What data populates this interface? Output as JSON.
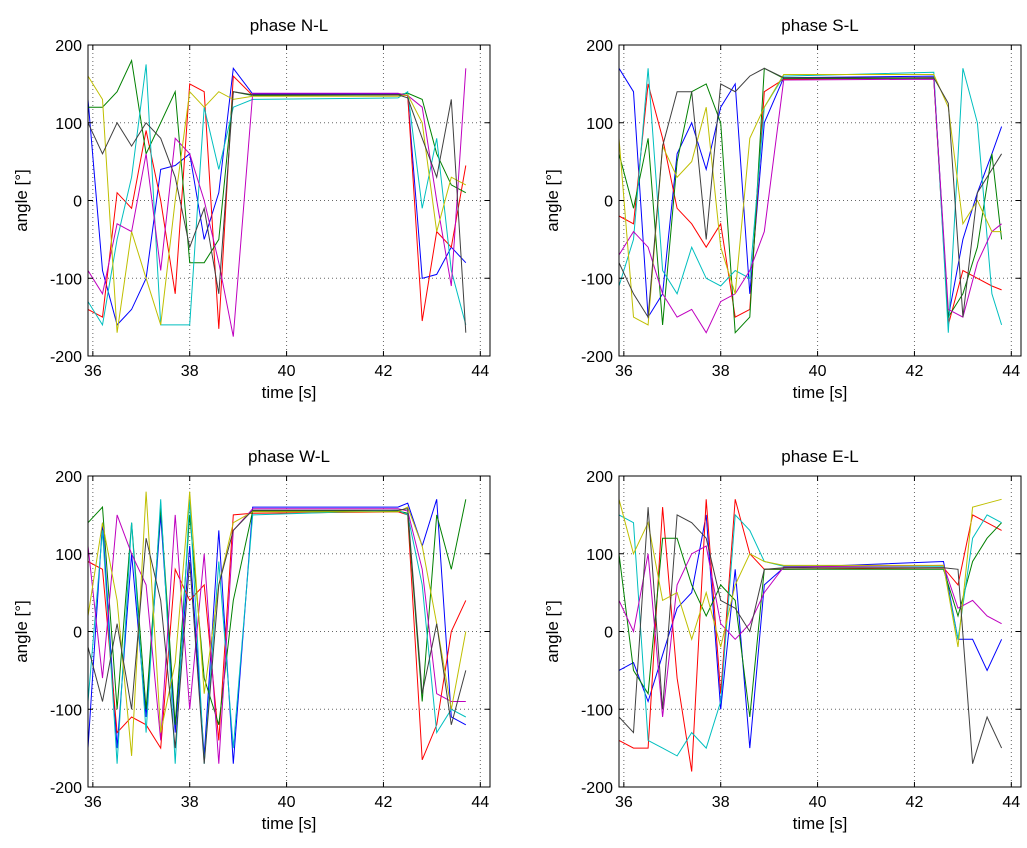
{
  "chart_data": [
    {
      "type": "line",
      "title": "phase N-L",
      "xlabel": "time [s]",
      "ylabel": "angle [°]",
      "xlim": [
        35.9,
        44.2
      ],
      "ylim": [
        -200,
        200
      ],
      "xticks": [
        36,
        38,
        40,
        42,
        44
      ],
      "yticks": [
        -200,
        -100,
        0,
        100,
        200
      ],
      "grid": true,
      "x": [
        35.9,
        36.2,
        36.5,
        36.8,
        37.1,
        37.4,
        37.7,
        38.0,
        38.3,
        38.6,
        38.9,
        39.3,
        42.3,
        42.5,
        42.8,
        43.1,
        43.4,
        43.7
      ],
      "series": [
        {
          "color": "#0000ff",
          "values": [
            130,
            -90,
            -160,
            -140,
            -100,
            40,
            45,
            60,
            -50,
            10,
            170,
            137,
            137,
            135,
            -100,
            -95,
            -60,
            -80
          ]
        },
        {
          "color": "#ff0000",
          "values": [
            -140,
            -150,
            10,
            -10,
            90,
            0,
            -120,
            150,
            140,
            -165,
            160,
            135,
            136,
            135,
            -155,
            -40,
            -60,
            45
          ]
        },
        {
          "color": "#008000",
          "values": [
            120,
            120,
            140,
            180,
            60,
            100,
            140,
            -80,
            -80,
            -50,
            140,
            135,
            136,
            138,
            130,
            60,
            20,
            10
          ]
        },
        {
          "color": "#00bfbf",
          "values": [
            -130,
            -160,
            -50,
            30,
            175,
            -160,
            -160,
            -160,
            120,
            40,
            120,
            130,
            132,
            140,
            -10,
            80,
            -90,
            -160
          ]
        },
        {
          "color": "#bf00bf",
          "values": [
            -90,
            -120,
            -30,
            -40,
            60,
            -90,
            80,
            60,
            0,
            -80,
            -175,
            138,
            138,
            135,
            120,
            0,
            -110,
            170
          ]
        },
        {
          "color": "#bfbf00",
          "values": [
            160,
            130,
            -170,
            -40,
            -100,
            -160,
            0,
            140,
            120,
            140,
            130,
            134,
            134,
            136,
            100,
            -40,
            30,
            20
          ]
        },
        {
          "color": "#404040",
          "values": [
            100,
            60,
            100,
            70,
            100,
            80,
            30,
            -60,
            -10,
            -120,
            140,
            136,
            136,
            132,
            80,
            30,
            130,
            -170
          ]
        }
      ]
    },
    {
      "type": "line",
      "title": "phase S-L",
      "xlabel": "time [s]",
      "ylabel": "angle [°]",
      "xlim": [
        35.9,
        44.2
      ],
      "ylim": [
        -200,
        200
      ],
      "xticks": [
        36,
        38,
        40,
        42,
        44
      ],
      "yticks": [
        -200,
        -100,
        0,
        100,
        200
      ],
      "grid": true,
      "x": [
        35.9,
        36.2,
        36.5,
        36.8,
        37.1,
        37.4,
        37.7,
        38.0,
        38.3,
        38.6,
        38.9,
        39.3,
        42.4,
        42.7,
        43.0,
        43.3,
        43.6,
        43.8
      ],
      "series": [
        {
          "color": "#0000ff",
          "values": [
            170,
            140,
            -150,
            -120,
            60,
            100,
            40,
            120,
            150,
            -120,
            100,
            158,
            160,
            -150,
            -50,
            10,
            60,
            95
          ]
        },
        {
          "color": "#ff0000",
          "values": [
            -20,
            -30,
            150,
            80,
            -10,
            -30,
            -60,
            -30,
            -150,
            -140,
            140,
            156,
            158,
            -160,
            -90,
            -100,
            -110,
            -115
          ]
        },
        {
          "color": "#008000",
          "values": [
            60,
            -10,
            80,
            -160,
            50,
            140,
            150,
            100,
            -170,
            -150,
            170,
            157,
            157,
            -150,
            -120,
            -60,
            60,
            -50
          ]
        },
        {
          "color": "#00bfbf",
          "values": [
            -110,
            -50,
            170,
            -90,
            -120,
            -60,
            -100,
            -110,
            -90,
            -100,
            120,
            160,
            165,
            -170,
            170,
            100,
            -120,
            -160
          ]
        },
        {
          "color": "#bf00bf",
          "values": [
            -70,
            -40,
            -60,
            -120,
            -150,
            -140,
            -170,
            -130,
            -120,
            -90,
            -40,
            155,
            156,
            -140,
            -150,
            -80,
            -40,
            -30
          ]
        },
        {
          "color": "#bfbf00",
          "values": [
            80,
            -150,
            -160,
            70,
            30,
            50,
            120,
            -60,
            -120,
            80,
            120,
            162,
            162,
            120,
            -30,
            0,
            -40,
            -40
          ]
        },
        {
          "color": "#404040",
          "values": [
            -80,
            -120,
            -150,
            70,
            140,
            140,
            -50,
            150,
            140,
            160,
            170,
            158,
            158,
            125,
            -150,
            10,
            40,
            60
          ]
        }
      ]
    },
    {
      "type": "line",
      "title": "phase W-L",
      "xlabel": "time [s]",
      "ylabel": "angle [°]",
      "xlim": [
        35.9,
        44.2
      ],
      "ylim": [
        -200,
        200
      ],
      "xticks": [
        36,
        38,
        40,
        42,
        44
      ],
      "yticks": [
        -200,
        -100,
        0,
        100,
        200
      ],
      "grid": true,
      "x": [
        35.9,
        36.2,
        36.5,
        36.8,
        37.1,
        37.4,
        37.7,
        38.0,
        38.3,
        38.6,
        38.9,
        39.3,
        42.3,
        42.5,
        42.8,
        43.1,
        43.4,
        43.7
      ],
      "series": [
        {
          "color": "#0000ff",
          "values": [
            -150,
            140,
            -150,
            100,
            -110,
            150,
            -130,
            110,
            -160,
            130,
            -170,
            160,
            160,
            165,
            110,
            170,
            -110,
            -120
          ]
        },
        {
          "color": "#ff0000",
          "values": [
            90,
            80,
            -130,
            -110,
            -120,
            -150,
            80,
            40,
            60,
            -140,
            150,
            152,
            154,
            150,
            -165,
            -120,
            0,
            40
          ]
        },
        {
          "color": "#008000",
          "values": [
            140,
            160,
            -100,
            140,
            -100,
            160,
            -120,
            150,
            -60,
            -120,
            40,
            155,
            155,
            152,
            -90,
            150,
            80,
            170
          ]
        },
        {
          "color": "#00bfbf",
          "values": [
            -90,
            130,
            -170,
            140,
            -130,
            170,
            -170,
            170,
            -170,
            90,
            -150,
            150,
            156,
            150,
            60,
            -130,
            -100,
            -110
          ]
        },
        {
          "color": "#bf00bf",
          "values": [
            110,
            -60,
            150,
            100,
            60,
            -140,
            150,
            -100,
            100,
            -170,
            130,
            158,
            158,
            155,
            80,
            -80,
            -90,
            -90
          ]
        },
        {
          "color": "#bfbf00",
          "values": [
            20,
            140,
            40,
            -160,
            180,
            -130,
            -40,
            180,
            -80,
            60,
            140,
            154,
            154,
            160,
            110,
            10,
            -100,
            0
          ]
        },
        {
          "color": "#404040",
          "values": [
            -20,
            -90,
            10,
            -100,
            120,
            40,
            -150,
            90,
            -170,
            60,
            130,
            156,
            156,
            158,
            -80,
            10,
            -120,
            -50
          ]
        }
      ]
    },
    {
      "type": "line",
      "title": "phase E-L",
      "xlabel": "time [s]",
      "ylabel": "angle [°]",
      "xlim": [
        35.9,
        44.2
      ],
      "ylim": [
        -200,
        200
      ],
      "xticks": [
        36,
        38,
        40,
        42,
        44
      ],
      "yticks": [
        -200,
        -100,
        0,
        100,
        200
      ],
      "grid": true,
      "x": [
        35.9,
        36.2,
        36.5,
        36.8,
        37.1,
        37.4,
        37.7,
        38.0,
        38.3,
        38.6,
        38.9,
        39.3,
        42.6,
        42.9,
        43.2,
        43.5,
        43.8
      ],
      "series": [
        {
          "color": "#0000ff",
          "values": [
            -50,
            -40,
            -90,
            -30,
            30,
            50,
            150,
            -100,
            80,
            -150,
            60,
            82,
            90,
            -10,
            -10,
            -50,
            -10
          ]
        },
        {
          "color": "#ff0000",
          "values": [
            -140,
            -150,
            -150,
            160,
            -60,
            -180,
            170,
            -80,
            170,
            100,
            80,
            80,
            82,
            60,
            150,
            140,
            130
          ]
        },
        {
          "color": "#008000",
          "values": [
            100,
            -50,
            -80,
            120,
            120,
            60,
            20,
            60,
            40,
            -110,
            80,
            80,
            80,
            20,
            90,
            120,
            140
          ]
        },
        {
          "color": "#00bfbf",
          "values": [
            150,
            140,
            -140,
            -150,
            -160,
            -130,
            -150,
            -90,
            150,
            130,
            90,
            84,
            84,
            -10,
            120,
            150,
            140
          ]
        },
        {
          "color": "#bf00bf",
          "values": [
            40,
            0,
            100,
            -110,
            60,
            100,
            110,
            10,
            -10,
            10,
            50,
            83,
            85,
            30,
            40,
            20,
            10
          ]
        },
        {
          "color": "#bfbf00",
          "values": [
            170,
            100,
            140,
            40,
            50,
            -10,
            50,
            -20,
            60,
            100,
            90,
            85,
            85,
            -20,
            160,
            165,
            170
          ]
        },
        {
          "color": "#404040",
          "values": [
            -110,
            -130,
            160,
            -100,
            150,
            140,
            120,
            40,
            30,
            0,
            80,
            82,
            82,
            80,
            -170,
            -110,
            -150
          ]
        }
      ]
    }
  ]
}
